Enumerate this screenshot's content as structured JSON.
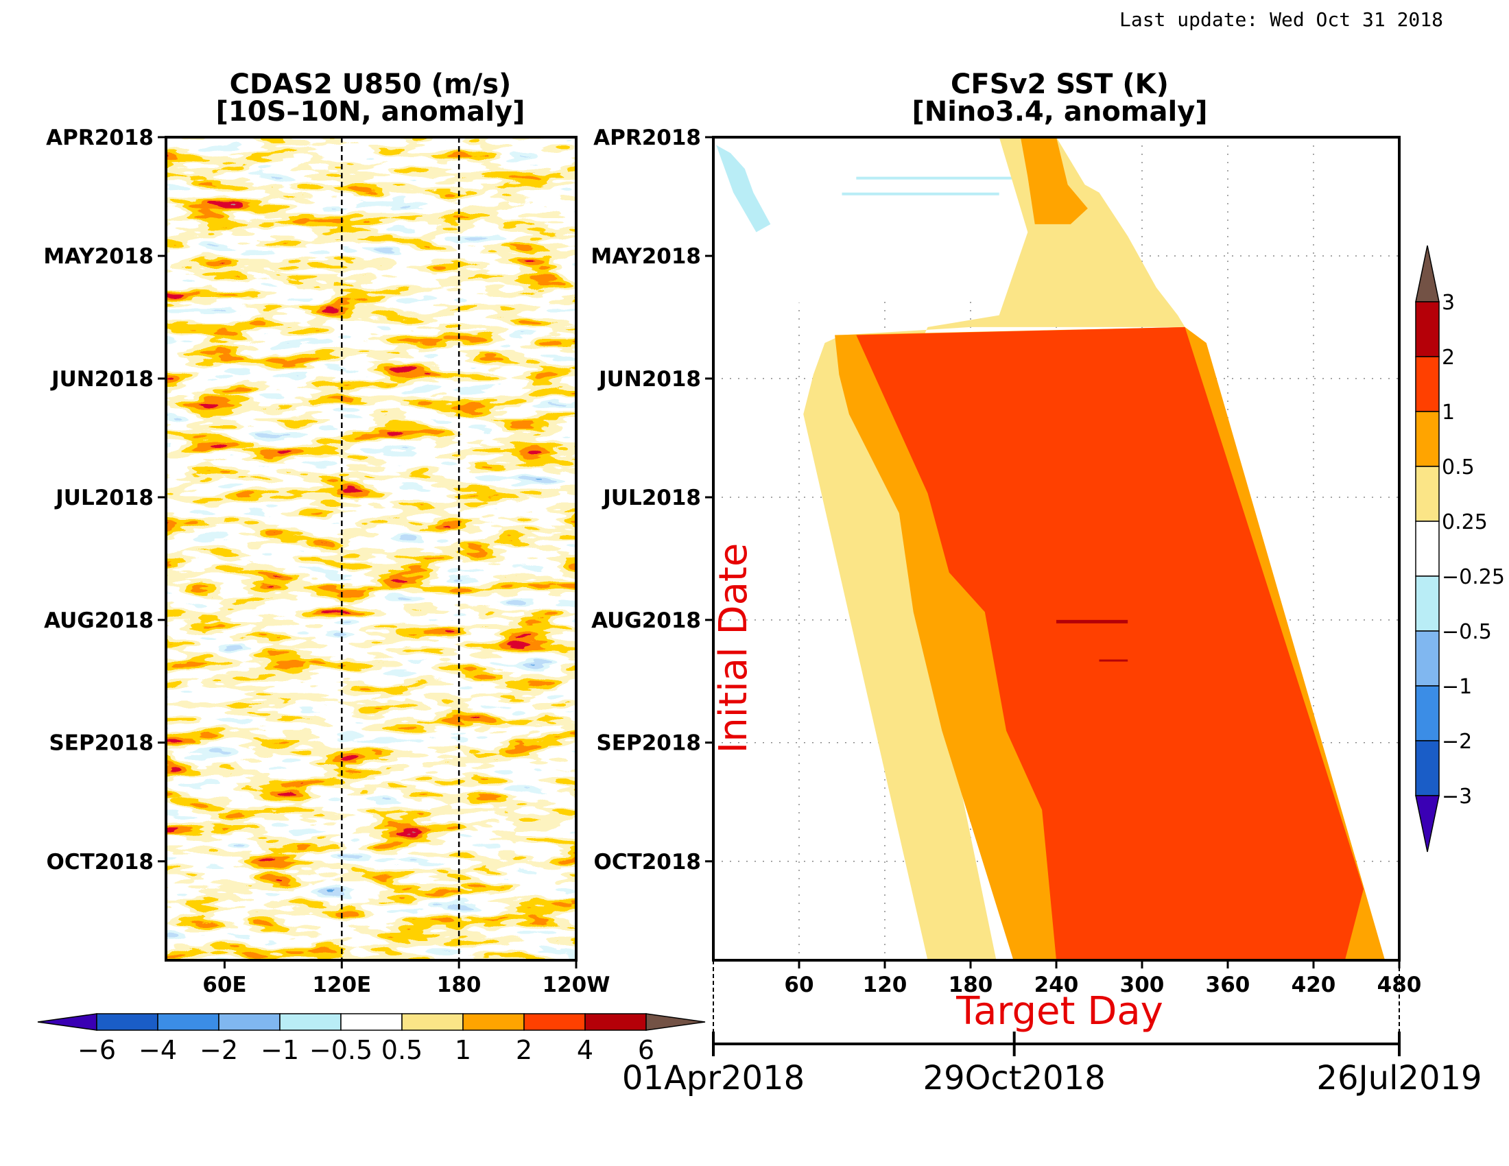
{
  "last_update": "Last update: Wed Oct 31 2018",
  "chart_data": [
    {
      "type": "heatmap",
      "title": "CDAS2 U850 (m/s)",
      "subtitle": "[10S–10N, anomaly]",
      "x_ticks": [
        "60E",
        "120E",
        "180",
        "120W"
      ],
      "x_tick_values": [
        60,
        120,
        180,
        240
      ],
      "xlim": [
        30,
        240
      ],
      "y_ticks": [
        "APR2018",
        "MAY2018",
        "JUN2018",
        "JUL2018",
        "AUG2018",
        "SEP2018",
        "OCT2018"
      ],
      "y_tick_values": [
        0,
        30,
        61,
        91,
        122,
        153,
        183
      ],
      "ylim": [
        0,
        208
      ],
      "reference_lines": [
        120,
        180
      ],
      "colorbar": {
        "orientation": "horizontal",
        "labels": [
          "−6",
          "−4",
          "−2",
          "−1",
          "−0.5",
          "0.5",
          "1",
          "2",
          "4",
          "6"
        ],
        "levels": [
          -6,
          -4,
          -2,
          -1,
          -0.5,
          0.5,
          1,
          2,
          4,
          6
        ],
        "colors": [
          "#3a00b4",
          "#1a5dc7",
          "#3b8de6",
          "#80b7f0",
          "#b9edf6",
          "#ffffff",
          "#fbe587",
          "#ffa400",
          "#ff4000",
          "#b50008",
          "#735245"
        ]
      }
    },
    {
      "type": "heatmap",
      "title": "CFSv2 SST (K)",
      "subtitle": "[Nino3.4, anomaly]",
      "xlabel": "Target Day",
      "ylabel": "Initial Date",
      "x_ticks": [
        "60",
        "120",
        "180",
        "240",
        "300",
        "360",
        "420",
        "480"
      ],
      "x_tick_values": [
        60,
        120,
        180,
        240,
        300,
        360,
        420,
        480
      ],
      "xlim": [
        0,
        480
      ],
      "y_ticks": [
        "APR2018",
        "MAY2018",
        "JUN2018",
        "JUL2018",
        "AUG2018",
        "SEP2018",
        "OCT2018"
      ],
      "y_tick_values": [
        0,
        30,
        61,
        91,
        122,
        153,
        183
      ],
      "ylim": [
        0,
        208
      ],
      "grid": true,
      "date_axis": [
        "01Apr2018",
        "29Oct2018",
        "26Jul2019"
      ],
      "date_axis_values": [
        0,
        211,
        481
      ],
      "colorbar": {
        "orientation": "vertical",
        "labels": [
          "3",
          "2",
          "1",
          "0.5",
          "0.25",
          "−0.25",
          "−0.5",
          "−1",
          "−2",
          "−3"
        ],
        "levels": [
          3,
          2,
          1,
          0.5,
          0.25,
          -0.25,
          -0.5,
          -1,
          -2,
          -3
        ],
        "colors": [
          "#735245",
          "#b50008",
          "#ff4000",
          "#ffa400",
          "#fbe587",
          "#ffffff",
          "#b9edf6",
          "#80b7f0",
          "#3b8de6",
          "#1a5dc7",
          "#3a00b4"
        ]
      }
    }
  ]
}
